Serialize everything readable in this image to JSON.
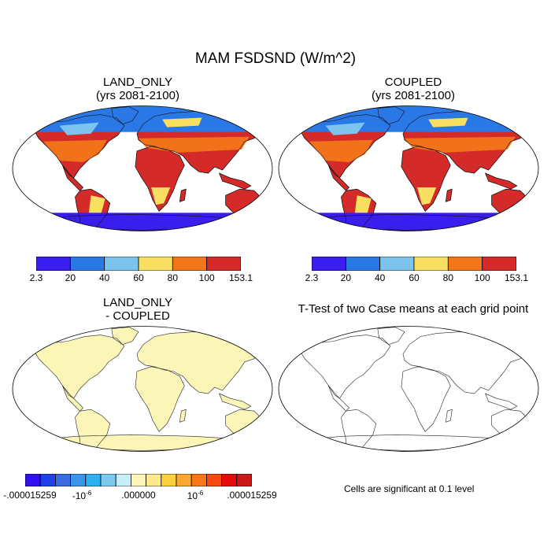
{
  "main_title": "MAM FSDSND (W/m^2)",
  "panels": {
    "land_only": {
      "title_line1": "LAND_ONLY",
      "title_line2": "(yrs 2081-2100)"
    },
    "coupled": {
      "title_line1": "COUPLED",
      "title_line2": "(yrs 2081-2100)"
    },
    "diff": {
      "title_line1": "LAND_ONLY",
      "title_line2": "- COUPLED"
    },
    "ttest": {
      "title": "T-Test of two Case means at each grid point",
      "note": "Cells are significant at 0.1 level"
    }
  },
  "colorbar_abs": {
    "labels": [
      "2.3",
      "20",
      "40",
      "60",
      "80",
      "100",
      "153.1"
    ],
    "colors": [
      "#3a1ef0",
      "#2a78e6",
      "#7cc4ee",
      "#f8df62",
      "#f2761a",
      "#d42a2a"
    ]
  },
  "colorbar_diff": {
    "labels": [
      ".000015259",
      "10",
      ".000000",
      "10",
      ".000015259"
    ],
    "label_prefixes": [
      "-",
      "-",
      "",
      "",
      ""
    ],
    "label_superscripts": [
      "",
      "-6",
      "",
      "-6",
      ""
    ],
    "colors": [
      "#3010f0",
      "#2040e8",
      "#3a6ae0",
      "#3a94e8",
      "#30b0ee",
      "#7ccaf0",
      "#c8eefa",
      "#fbf5b8",
      "#fde890",
      "#fcd040",
      "#fca830",
      "#fa7418",
      "#f84810",
      "#e20c0c",
      "#c81a1a"
    ]
  }
}
